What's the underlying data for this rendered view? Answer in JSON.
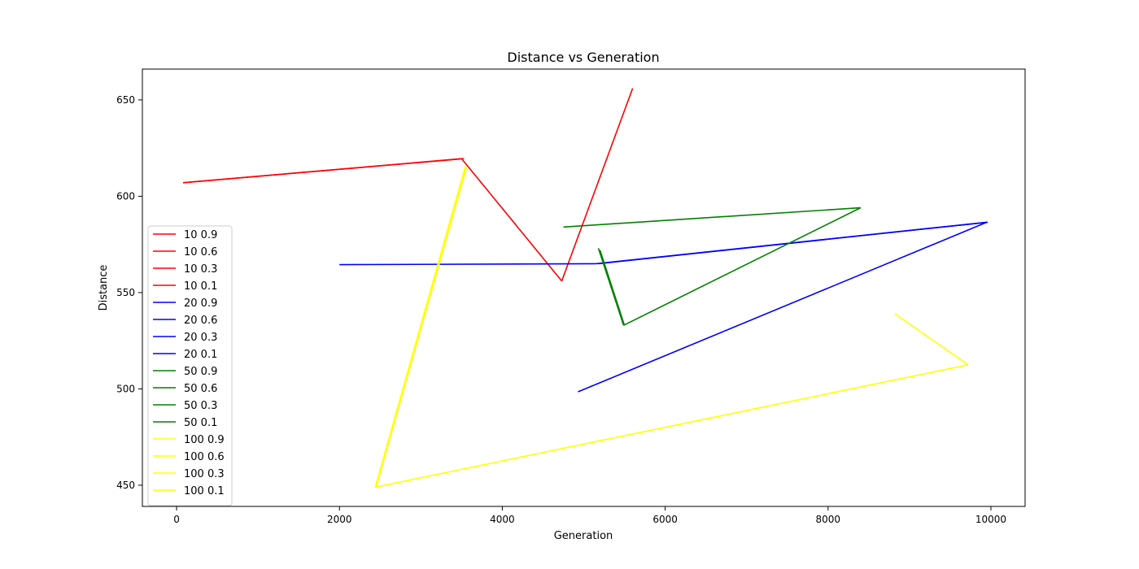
{
  "chart_data": {
    "type": "line",
    "title": "Distance vs Generation",
    "xlabel": "Generation",
    "ylabel": "Distance",
    "xlim": [
      -420,
      10420
    ],
    "ylim": [
      439,
      666
    ],
    "xticks": [
      0,
      2000,
      4000,
      6000,
      8000,
      10000
    ],
    "yticks": [
      450,
      500,
      550,
      600,
      650
    ],
    "grid": false,
    "legend_position": "lower-left",
    "series": [
      {
        "name": "10 0.9",
        "color": "#ff0000",
        "x": [
          80,
          3500
        ],
        "y": [
          607,
          619.5
        ]
      },
      {
        "name": "10 0.6",
        "color": "#ff0000",
        "x": [
          3500,
          4730
        ],
        "y": [
          619.5,
          556
        ]
      },
      {
        "name": "10 0.3",
        "color": "#ff0000",
        "x": [
          4730,
          5600
        ],
        "y": [
          556,
          656
        ]
      },
      {
        "name": "10 0.1",
        "color": "#ff0000",
        "x": [
          80,
          3530
        ],
        "y": [
          607,
          619.5
        ]
      },
      {
        "name": "20 0.9",
        "color": "#0000ff",
        "x": [
          2000,
          5150
        ],
        "y": [
          564.5,
          565
        ]
      },
      {
        "name": "20 0.6",
        "color": "#0000ff",
        "x": [
          5150,
          9950
        ],
        "y": [
          565,
          586.5
        ]
      },
      {
        "name": "20 0.3",
        "color": "#0000ff",
        "x": [
          9950,
          4930
        ],
        "y": [
          586.5,
          498.5
        ]
      },
      {
        "name": "20 0.1",
        "color": "#0000ff",
        "x": [
          5180,
          9960
        ],
        "y": [
          565,
          586.5
        ]
      },
      {
        "name": "50 0.9",
        "color": "#008000",
        "x": [
          4750,
          8400
        ],
        "y": [
          584,
          594
        ]
      },
      {
        "name": "50 0.6",
        "color": "#008000",
        "x": [
          8400,
          5490
        ],
        "y": [
          594,
          533
        ]
      },
      {
        "name": "50 0.3",
        "color": "#008000",
        "x": [
          5490,
          5180
        ],
        "y": [
          533,
          573
        ]
      },
      {
        "name": "50 0.1",
        "color": "#008000",
        "x": [
          5500,
          5200
        ],
        "y": [
          533,
          572
        ]
      },
      {
        "name": "100 0.9",
        "color": "#ffff00",
        "x": [
          3550,
          2440
        ],
        "y": [
          616,
          449
        ]
      },
      {
        "name": "100 0.6",
        "color": "#ffff00",
        "x": [
          2440,
          9720
        ],
        "y": [
          449,
          512.5
        ]
      },
      {
        "name": "100 0.3",
        "color": "#ffff00",
        "x": [
          9720,
          8820
        ],
        "y": [
          512.5,
          539
        ]
      },
      {
        "name": "100 0.1",
        "color": "#ffff00",
        "x": [
          3560,
          2450
        ],
        "y": [
          615,
          449
        ]
      }
    ]
  }
}
